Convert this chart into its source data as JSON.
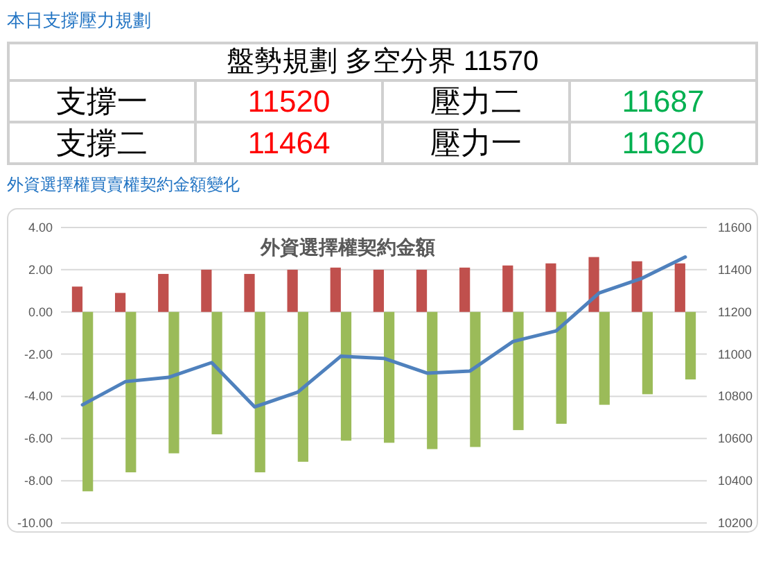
{
  "chart_data": [
    {
      "type": "other",
      "title": "本日支撐壓力規劃",
      "annotations": [
        "盤勢規劃 多空分界 11570",
        "支撐一",
        "11520",
        "壓力二",
        "11687",
        "支撐二",
        "11464",
        "壓力一",
        "11620"
      ],
      "colors": [
        "#000000",
        "#000000",
        "#ff0000",
        "#000000",
        "#00b050",
        "#000000",
        "#ff0000",
        "#000000",
        "#00b050"
      ]
    },
    {
      "type": "bar",
      "title": "外資選擇權買賣權契約金額變化",
      "subtitle": "外資選擇權契約金額",
      "categories": [
        null,
        null,
        null,
        null,
        null,
        null,
        null,
        null,
        null,
        null,
        null,
        null,
        null,
        null,
        null
      ],
      "series": [
        {
          "color": "#c0504d",
          "values": [
            1.2,
            0.9,
            1.8,
            2.0,
            1.8,
            2.0,
            2.1,
            2.0,
            2.0,
            2.1,
            2.2,
            2.3,
            2.6,
            2.4,
            2.3
          ]
        },
        {
          "color": "#9bbb59",
          "values": [
            -8.5,
            -7.6,
            -6.7,
            -5.8,
            -7.6,
            -7.1,
            -6.1,
            -6.2,
            -6.5,
            -6.4,
            -5.6,
            -5.3,
            -4.4,
            -3.9,
            -3.2
          ]
        },
        {
          "type": "line",
          "axis": "y2",
          "color": "#4f81bd",
          "values": [
            10760,
            10870,
            10890,
            10960,
            10750,
            10820,
            10990,
            10980,
            10910,
            10920,
            11060,
            11110,
            11290,
            11360,
            11460
          ]
        }
      ],
      "ylim": [
        -10,
        4
      ],
      "yticks": [
        {
          "value": -10,
          "label": "-10.00"
        },
        {
          "value": -8,
          "label": "-8.00"
        },
        {
          "value": -6,
          "label": "-6.00"
        },
        {
          "value": -4,
          "label": "-4.00"
        },
        {
          "value": -2,
          "label": "-2.00"
        },
        {
          "value": 0,
          "label": "0.00"
        },
        {
          "value": 2,
          "label": "2.00"
        },
        {
          "value": 4,
          "label": "4.00"
        }
      ],
      "y2lim": [
        10200,
        11600
      ],
      "y2ticks": [
        10200,
        10400,
        10600,
        10800,
        11000,
        11200,
        11400,
        11600
      ],
      "grid": "y"
    }
  ]
}
